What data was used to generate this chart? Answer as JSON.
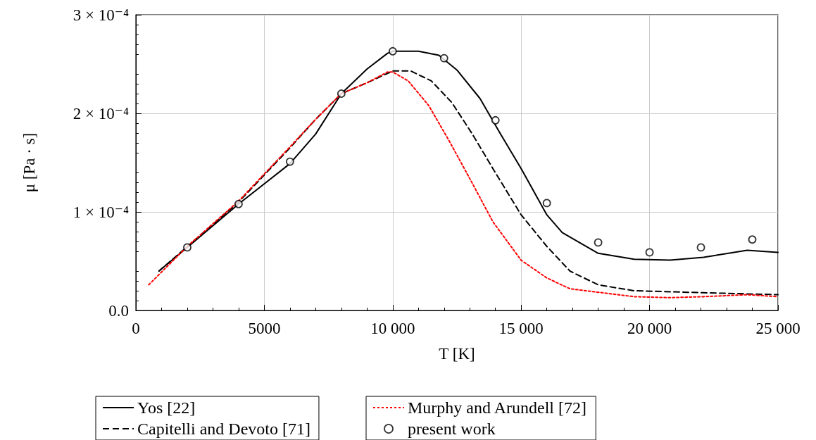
{
  "chart_data": {
    "type": "line",
    "xlabel": "T [K]",
    "ylabel": "μ [Pa · s]",
    "xlim": [
      0,
      25000
    ],
    "xticks": [
      0,
      5000,
      {
        "value": 10000,
        "label": "10 000"
      },
      {
        "value": 15000,
        "label": "15 000"
      },
      {
        "value": 20000,
        "label": "20 000"
      },
      {
        "value": 25000,
        "label": "25 000"
      }
    ],
    "ylim": [
      0,
      0.0003
    ],
    "yticks": [
      {
        "value": 0,
        "label": "0.0"
      },
      {
        "value": 0.0001,
        "label": "1 × 10⁻⁴"
      },
      {
        "value": 0.0002,
        "label": "2 × 10⁻⁴"
      },
      {
        "value": 0.0003,
        "label": "3 × 10⁻⁴"
      }
    ],
    "grid": true,
    "legend": "bottom",
    "series": [
      {
        "name": "Yos [22]",
        "color": "#000000",
        "line_style": "solid",
        "marker": "none",
        "x": [
          900,
          2000,
          4000,
          6000,
          7000,
          8000,
          9000,
          9800,
          10000,
          11000,
          11800,
          12500,
          13400,
          14200,
          15000,
          16000,
          16600,
          18000,
          19400,
          20800,
          22100,
          23800,
          25000
        ],
        "values": [
          4e-05,
          6.4e-05,
          0.000108,
          0.000149,
          0.000179,
          0.00022,
          0.000245,
          0.000261,
          0.000263,
          0.000263,
          0.000259,
          0.000244,
          0.000215,
          0.000179,
          0.000144,
          9.7e-05,
          7.9e-05,
          5.8e-05,
          5.2e-05,
          5.1e-05,
          5.4e-05,
          6.1e-05,
          5.9e-05
        ]
      },
      {
        "name": "Capitelli and Devoto [71]",
        "color": "#000000",
        "line_style": "dashed",
        "marker": "none",
        "x": [
          900,
          4000,
          6000,
          7000,
          8000,
          9000,
          10000,
          10700,
          11500,
          12300,
          13100,
          13900,
          15000,
          16000,
          16900,
          18000,
          19400,
          22100,
          25000
        ],
        "values": [
          4e-05,
          0.00011,
          0.000165,
          0.000194,
          0.00022,
          0.000231,
          0.000243,
          0.000243,
          0.000233,
          0.000211,
          0.000179,
          0.000144,
          9.7e-05,
          6.5e-05,
          4e-05,
          2.6e-05,
          2e-05,
          1.8e-05,
          1.6e-05
        ]
      },
      {
        "name": "Murphy and Arundell [72]",
        "color": "#ff0000",
        "line_style": "dotted",
        "marker": "none",
        "x": [
          500,
          2000,
          4000,
          6000,
          7000,
          8000,
          9000,
          9800,
          10000,
          10600,
          11400,
          12200,
          13100,
          13900,
          15000,
          16000,
          16900,
          19400,
          20800,
          22100,
          23800,
          25000
        ],
        "values": [
          2.6e-05,
          6.5e-05,
          0.000111,
          0.000166,
          0.000194,
          0.00022,
          0.000231,
          0.000242,
          0.000242,
          0.000233,
          0.000208,
          0.000172,
          0.000129,
          9e-05,
          5.1e-05,
          3.3e-05,
          2.2e-05,
          1.4e-05,
          1.3e-05,
          1.4e-05,
          1.6e-05,
          1.4e-05
        ]
      },
      {
        "name": "present work",
        "type": "scatter",
        "color": "#000000",
        "marker": "circle",
        "x": [
          2000,
          4000,
          6000,
          8000,
          10000,
          12000,
          14000,
          16000,
          18000,
          20000,
          22000,
          24000
        ],
        "values": [
          6.4e-05,
          0.000108,
          0.000151,
          0.00022,
          0.000263,
          0.000256,
          0.000193,
          0.000109,
          6.9e-05,
          5.9e-05,
          6.4e-05,
          7.2e-05
        ]
      }
    ]
  }
}
